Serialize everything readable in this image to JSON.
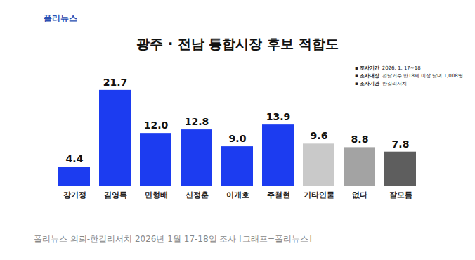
{
  "header": {
    "logo": "폴리뉴스"
  },
  "chart_data": {
    "type": "bar",
    "title": "광주 · 전남 통합시장 후보 적합도",
    "categories": [
      "강기정",
      "김영록",
      "민형배",
      "신정훈",
      "이개호",
      "주철현",
      "기타인물",
      "없다",
      "잘모름"
    ],
    "values": [
      4.4,
      21.7,
      12.0,
      12.8,
      9.0,
      13.9,
      9.6,
      8.8,
      7.8
    ],
    "value_labels": [
      "4.4",
      "21.7",
      "12.0",
      "12.8",
      "9.0",
      "13.9",
      "9.6",
      "8.8",
      "7.8"
    ],
    "colors": [
      "#1c3cf0",
      "#1c3cf0",
      "#1c3cf0",
      "#1c3cf0",
      "#1c3cf0",
      "#1c3cf0",
      "#c9c9c9",
      "#a3a3a3",
      "#5e5e5e"
    ],
    "ylim": [
      0,
      25
    ],
    "yticks": [],
    "data_labels": true,
    "tick_labels": "x",
    "grid": false,
    "annotations": [
      {
        "key": "조사기간",
        "text": "2026. 1. 17~18"
      },
      {
        "key": "조사대상",
        "text": "전남거주 만18세 이상 남녀 1,008명"
      },
      {
        "key": "조사기관",
        "text": "한길리서치"
      }
    ],
    "caption": "폴리뉴스 의뢰-한길리서치 2026년 1월 17-18일 조사 [그래프=폴리뉴스]"
  }
}
